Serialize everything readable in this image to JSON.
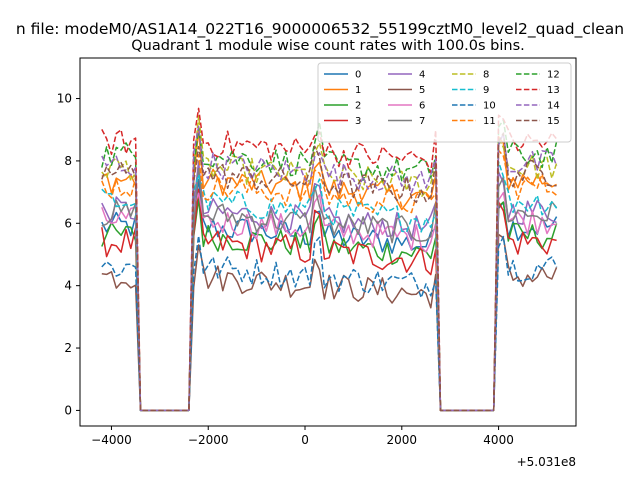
{
  "chart_data": {
    "type": "line",
    "suptitle": "n file: modeM0/AS1A14_022T16_9000006532_55199cztM0_level2_quad_clean",
    "title": "Quadrant 1 module wise count rates with 100.0s bins.",
    "xlabel": "",
    "ylabel": "",
    "x_offset_label": "+5.031e8",
    "xlim": [
      -4650,
      5600
    ],
    "ylim": [
      -0.5,
      11.3
    ],
    "x_ticks": [
      -4000,
      -2000,
      0,
      2000,
      4000
    ],
    "x_tick_labels": [
      "−4000",
      "−2000",
      "0",
      "2000",
      "4000"
    ],
    "y_ticks": [
      0,
      2,
      4,
      6,
      8,
      10
    ],
    "y_tick_labels": [
      "0",
      "2",
      "4",
      "6",
      "8",
      "10"
    ],
    "grid": false,
    "legend_position": "top-right",
    "legend_columns": 4,
    "x_start": -4200,
    "x_step": 100,
    "n_points": 95,
    "gaps": [
      [
        -3450,
        -2400
      ],
      [
        2800,
        3900
      ]
    ],
    "edge_steps": [
      [
        -3500,
        -3450
      ],
      [
        -2400,
        -2250
      ],
      [
        2750,
        2800
      ],
      [
        3900,
        4000
      ],
      [
        5150,
        5200
      ]
    ],
    "series": [
      {
        "name": "0",
        "color": "#1f77b4",
        "dash": false,
        "level": 5.9,
        "noise": 0.45
      },
      {
        "name": "1",
        "color": "#ff7f0e",
        "dash": false,
        "level": 7.4,
        "noise": 0.45
      },
      {
        "name": "2",
        "color": "#2ca02c",
        "dash": false,
        "level": 5.6,
        "noise": 0.45
      },
      {
        "name": "3",
        "color": "#d62728",
        "dash": false,
        "level": 5.4,
        "noise": 0.5
      },
      {
        "name": "4",
        "color": "#9467bd",
        "dash": false,
        "level": 6.4,
        "noise": 0.45
      },
      {
        "name": "5",
        "color": "#8c564b",
        "dash": false,
        "level": 4.3,
        "noise": 0.45
      },
      {
        "name": "6",
        "color": "#e377c2",
        "dash": false,
        "level": 6.1,
        "noise": 0.45
      },
      {
        "name": "7",
        "color": "#7f7f7f",
        "dash": false,
        "level": 6.3,
        "noise": 0.45
      },
      {
        "name": "8",
        "color": "#bcbd22",
        "dash": true,
        "level": 7.8,
        "noise": 0.45
      },
      {
        "name": "9",
        "color": "#17becf",
        "dash": true,
        "level": 6.7,
        "noise": 0.45
      },
      {
        "name": "10",
        "color": "#1f77b4",
        "dash": true,
        "level": 4.6,
        "noise": 0.45
      },
      {
        "name": "11",
        "color": "#ff7f0e",
        "dash": true,
        "level": 7.2,
        "noise": 0.45
      },
      {
        "name": "12",
        "color": "#2ca02c",
        "dash": true,
        "level": 8.2,
        "noise": 0.45
      },
      {
        "name": "13",
        "color": "#d62728",
        "dash": true,
        "level": 8.6,
        "noise": 0.45
      },
      {
        "name": "14",
        "color": "#9467bd",
        "dash": true,
        "level": 7.9,
        "noise": 0.45
      },
      {
        "name": "15",
        "color": "#8c564b",
        "dash": true,
        "level": 7.6,
        "noise": 0.45
      }
    ]
  }
}
